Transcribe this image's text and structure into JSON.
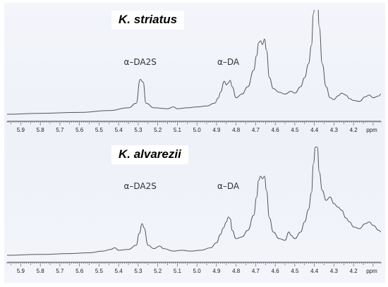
{
  "chart_data": [
    {
      "type": "line",
      "title": "K. striatus",
      "xlabel": "ppm",
      "xlim": [
        5.97,
        4.06
      ],
      "x_reversed": true,
      "tick_labels": [
        "5.9",
        "5.8",
        "5.7",
        "5.6",
        "5.5",
        "5.4",
        "5.3",
        "5.2",
        "5.1",
        "5.0",
        "4.9",
        "4.8",
        "4.7",
        "4.6",
        "4.5",
        "4.4",
        "4.3",
        "4.2"
      ],
      "annotations": [
        {
          "text": "α–DA2S",
          "x": 5.29
        },
        {
          "text": "α–DA",
          "x": 4.84
        }
      ],
      "spectrum": [
        [
          5.97,
          0.0
        ],
        [
          5.8,
          0.01
        ],
        [
          5.6,
          0.02
        ],
        [
          5.45,
          0.04
        ],
        [
          5.35,
          0.07
        ],
        [
          5.31,
          0.12
        ],
        [
          5.29,
          0.38
        ],
        [
          5.275,
          0.35
        ],
        [
          5.26,
          0.12
        ],
        [
          5.22,
          0.07
        ],
        [
          5.15,
          0.06
        ],
        [
          5.12,
          0.08
        ],
        [
          5.1,
          0.06
        ],
        [
          5.05,
          0.07
        ],
        [
          5.0,
          0.08
        ],
        [
          4.95,
          0.09
        ],
        [
          4.91,
          0.12
        ],
        [
          4.89,
          0.18
        ],
        [
          4.88,
          0.24
        ],
        [
          4.86,
          0.36
        ],
        [
          4.85,
          0.32
        ],
        [
          4.84,
          0.34
        ],
        [
          4.83,
          0.37
        ],
        [
          4.82,
          0.3
        ],
        [
          4.8,
          0.18
        ],
        [
          4.77,
          0.22
        ],
        [
          4.74,
          0.3
        ],
        [
          4.71,
          0.48
        ],
        [
          4.695,
          0.64
        ],
        [
          4.685,
          0.78
        ],
        [
          4.675,
          0.8
        ],
        [
          4.665,
          0.76
        ],
        [
          4.655,
          0.82
        ],
        [
          4.645,
          0.7
        ],
        [
          4.63,
          0.4
        ],
        [
          4.61,
          0.28
        ],
        [
          4.58,
          0.24
        ],
        [
          4.55,
          0.22
        ],
        [
          4.52,
          0.25
        ],
        [
          4.5,
          0.23
        ],
        [
          4.47,
          0.3
        ],
        [
          4.45,
          0.4
        ],
        [
          4.43,
          0.55
        ],
        [
          4.415,
          0.75
        ],
        [
          4.405,
          1.1
        ],
        [
          4.395,
          1.3
        ],
        [
          4.385,
          1.3
        ],
        [
          4.375,
          0.95
        ],
        [
          4.36,
          0.55
        ],
        [
          4.34,
          0.3
        ],
        [
          4.32,
          0.18
        ],
        [
          4.3,
          0.16
        ],
        [
          4.28,
          0.2
        ],
        [
          4.26,
          0.23
        ],
        [
          4.24,
          0.21
        ],
        [
          4.22,
          0.17
        ],
        [
          4.2,
          0.15
        ],
        [
          4.17,
          0.14
        ],
        [
          4.14,
          0.19
        ],
        [
          4.12,
          0.21
        ],
        [
          4.1,
          0.18
        ],
        [
          4.07,
          0.2
        ],
        [
          4.06,
          0.22
        ]
      ]
    },
    {
      "type": "line",
      "title": "K. alvarezii",
      "xlabel": "ppm",
      "xlim": [
        5.97,
        4.06
      ],
      "x_reversed": true,
      "tick_labels": [
        "5.9",
        "5.8",
        "5.7",
        "5.6",
        "5.5",
        "5.4",
        "5.3",
        "5.2",
        "5.1",
        "5.0",
        "4.9",
        "4.8",
        "4.7",
        "4.6",
        "4.5",
        "4.4",
        "4.3",
        "4.2"
      ],
      "annotations": [
        {
          "text": "α–DA2S",
          "x": 5.29
        },
        {
          "text": "α–DA",
          "x": 4.84
        }
      ],
      "spectrum": [
        [
          5.97,
          0.0
        ],
        [
          5.8,
          0.01
        ],
        [
          5.65,
          0.02
        ],
        [
          5.55,
          0.03
        ],
        [
          5.48,
          0.05
        ],
        [
          5.44,
          0.07
        ],
        [
          5.42,
          0.09
        ],
        [
          5.4,
          0.06
        ],
        [
          5.35,
          0.07
        ],
        [
          5.31,
          0.12
        ],
        [
          5.295,
          0.26
        ],
        [
          5.28,
          0.38
        ],
        [
          5.27,
          0.33
        ],
        [
          5.25,
          0.12
        ],
        [
          5.22,
          0.08
        ],
        [
          5.19,
          0.11
        ],
        [
          5.17,
          0.08
        ],
        [
          5.12,
          0.05
        ],
        [
          5.08,
          0.06
        ],
        [
          5.03,
          0.05
        ],
        [
          4.98,
          0.06
        ],
        [
          4.93,
          0.09
        ],
        [
          4.9,
          0.15
        ],
        [
          4.88,
          0.25
        ],
        [
          4.865,
          0.33
        ],
        [
          4.85,
          0.4
        ],
        [
          4.84,
          0.46
        ],
        [
          4.83,
          0.44
        ],
        [
          4.82,
          0.3
        ],
        [
          4.8,
          0.2
        ],
        [
          4.77,
          0.22
        ],
        [
          4.74,
          0.3
        ],
        [
          4.71,
          0.48
        ],
        [
          4.695,
          0.7
        ],
        [
          4.685,
          0.9
        ],
        [
          4.675,
          0.95
        ],
        [
          4.665,
          0.92
        ],
        [
          4.655,
          0.95
        ],
        [
          4.645,
          0.78
        ],
        [
          4.63,
          0.45
        ],
        [
          4.61,
          0.28
        ],
        [
          4.58,
          0.2
        ],
        [
          4.55,
          0.18
        ],
        [
          4.53,
          0.28
        ],
        [
          4.52,
          0.24
        ],
        [
          4.5,
          0.2
        ],
        [
          4.47,
          0.28
        ],
        [
          4.45,
          0.4
        ],
        [
          4.43,
          0.55
        ],
        [
          4.415,
          0.75
        ],
        [
          4.405,
          1.1
        ],
        [
          4.395,
          1.3
        ],
        [
          4.385,
          1.3
        ],
        [
          4.375,
          1.0
        ],
        [
          4.36,
          0.78
        ],
        [
          4.34,
          0.66
        ],
        [
          4.32,
          0.7
        ],
        [
          4.3,
          0.62
        ],
        [
          4.28,
          0.58
        ],
        [
          4.26,
          0.54
        ],
        [
          4.24,
          0.45
        ],
        [
          4.22,
          0.4
        ],
        [
          4.2,
          0.34
        ],
        [
          4.17,
          0.32
        ],
        [
          4.14,
          0.38
        ],
        [
          4.12,
          0.4
        ],
        [
          4.1,
          0.36
        ],
        [
          4.07,
          0.3
        ],
        [
          4.06,
          0.28
        ]
      ]
    }
  ]
}
